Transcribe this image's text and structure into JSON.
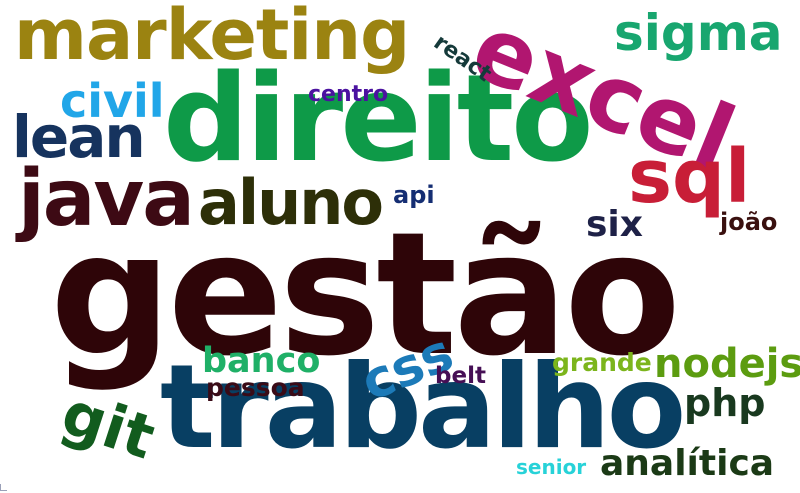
{
  "words": [
    {
      "text": "gestão",
      "color": "#2e0508"
    },
    {
      "text": "direito",
      "color": "#0e9a48"
    },
    {
      "text": "trabalho",
      "color": "#083f63"
    },
    {
      "text": "excel",
      "color": "#b11670"
    },
    {
      "text": "marketing",
      "color": "#9b8311"
    },
    {
      "text": "java",
      "color": "#3d0a14"
    },
    {
      "text": "aluno",
      "color": "#2d2f08"
    },
    {
      "text": "sql",
      "color": "#c81e37"
    },
    {
      "text": "lean",
      "color": "#16335e"
    },
    {
      "text": "sigma",
      "color": "#18a66f"
    },
    {
      "text": "civil",
      "color": "#21a6e8"
    },
    {
      "text": "css",
      "color": "#1c7ab8"
    },
    {
      "text": "git",
      "color": "#125c1e"
    },
    {
      "text": "analítica",
      "color": "#1b3a16"
    },
    {
      "text": "nodejs",
      "color": "#5c9c10"
    },
    {
      "text": "banco",
      "color": "#1fb067"
    },
    {
      "text": "php",
      "color": "#19391f"
    },
    {
      "text": "six",
      "color": "#1e2147"
    },
    {
      "text": "pessoa",
      "color": "#3a0b17"
    },
    {
      "text": "belt",
      "color": "#460f55"
    },
    {
      "text": "grande",
      "color": "#7cb51c"
    },
    {
      "text": "centro",
      "color": "#4b12a0"
    },
    {
      "text": "react",
      "color": "#153a3a"
    },
    {
      "text": "api",
      "color": "#152e73"
    },
    {
      "text": "joão",
      "color": "#3a100f"
    },
    {
      "text": "senior",
      "color": "#27d2d8"
    }
  ]
}
